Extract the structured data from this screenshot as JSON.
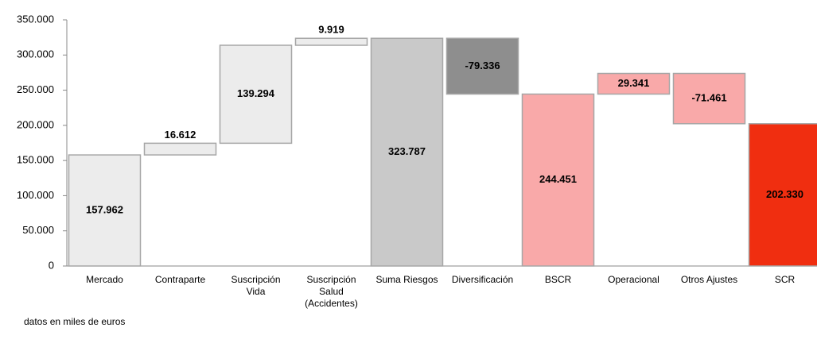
{
  "chart_data": {
    "type": "waterfall",
    "categories": [
      "Mercado",
      "Contraparte",
      "Suscripción\nVida",
      "Suscripción\nSalud\n(Accidentes)",
      "Suma Riesgos",
      "Diversificación",
      "BSCR",
      "Operacional",
      "Otros Ajustes",
      "SCR"
    ],
    "values": [
      157962,
      16612,
      139294,
      9919,
      323787,
      -79336,
      244451,
      29341,
      -71461,
      202330
    ],
    "value_labels": [
      "157.962",
      "16.612",
      "139.294",
      "9.919",
      "323.787",
      "-79.336",
      "244.451",
      "29.341",
      "-71.461",
      "202.330"
    ],
    "totals": [
      false,
      false,
      false,
      false,
      true,
      false,
      true,
      false,
      false,
      true
    ],
    "colors": [
      "#ececec",
      "#ececec",
      "#ececec",
      "#ececec",
      "#c9c9c9",
      "#8e8e8e",
      "#f9a9a9",
      "#f9a9a9",
      "#f9a9a9",
      "#f02e10"
    ],
    "ylim": [
      0,
      350000
    ],
    "yticks": [
      0,
      {
        "value": 50000,
        "label": "50.000"
      },
      {
        "value": 100000,
        "label": "100.000"
      },
      {
        "value": 150000,
        "label": "150.000"
      },
      {
        "value": 200000,
        "label": "200.000"
      },
      {
        "value": 250000,
        "label": "250.000"
      },
      {
        "value": 300000,
        "label": "300.000"
      },
      {
        "value": 350000,
        "label": "350.000"
      }
    ],
    "note": "datos en miles de euros"
  }
}
